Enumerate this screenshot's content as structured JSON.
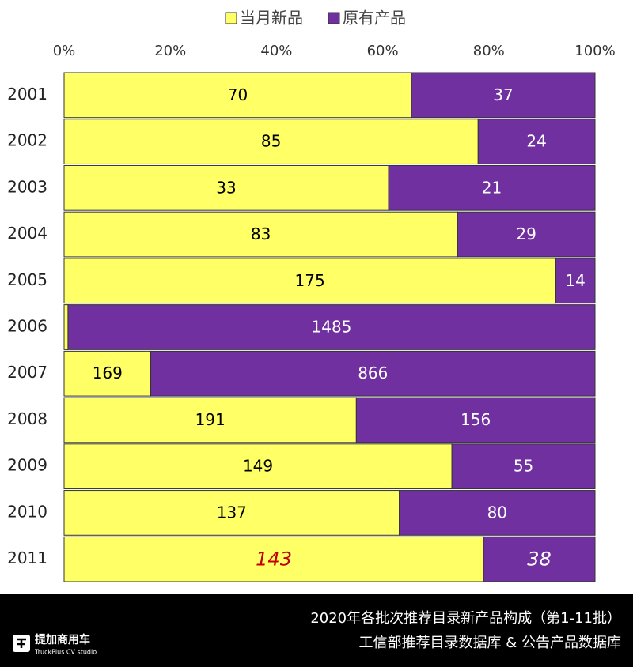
{
  "chart_data": {
    "type": "bar",
    "orientation": "horizontal",
    "stacking": "percent",
    "title": "2020年各批次推荐目录新产品构成（第1-11批）",
    "source": "工信部推荐目录数据库 & 公告产品数据库",
    "categories": [
      "2001",
      "2002",
      "2003",
      "2004",
      "2005",
      "2006",
      "2007",
      "2008",
      "2009",
      "2010",
      "2011"
    ],
    "series": [
      {
        "name": "当月新品",
        "color": "#ffff66",
        "label_color": "#000000",
        "values": [
          70,
          85,
          33,
          83,
          175,
          11,
          169,
          191,
          149,
          137,
          143
        ]
      },
      {
        "name": "原有产品",
        "color": "#7030a0",
        "label_color": "#ffffff",
        "values": [
          37,
          24,
          21,
          29,
          14,
          1485,
          866,
          156,
          55,
          80,
          38
        ]
      }
    ],
    "xlim": [
      0,
      100
    ],
    "xticks": [
      {
        "value": 0,
        "label": "0%"
      },
      {
        "value": 20,
        "label": "20%"
      },
      {
        "value": 40,
        "label": "40%"
      },
      {
        "value": 60,
        "label": "60%"
      },
      {
        "value": 80,
        "label": "80%"
      },
      {
        "value": 100,
        "label": "100%"
      }
    ],
    "legend": "top"
  },
  "logo": {
    "name": "提加商用车",
    "subtitle": "TruckPlus CV studio"
  }
}
